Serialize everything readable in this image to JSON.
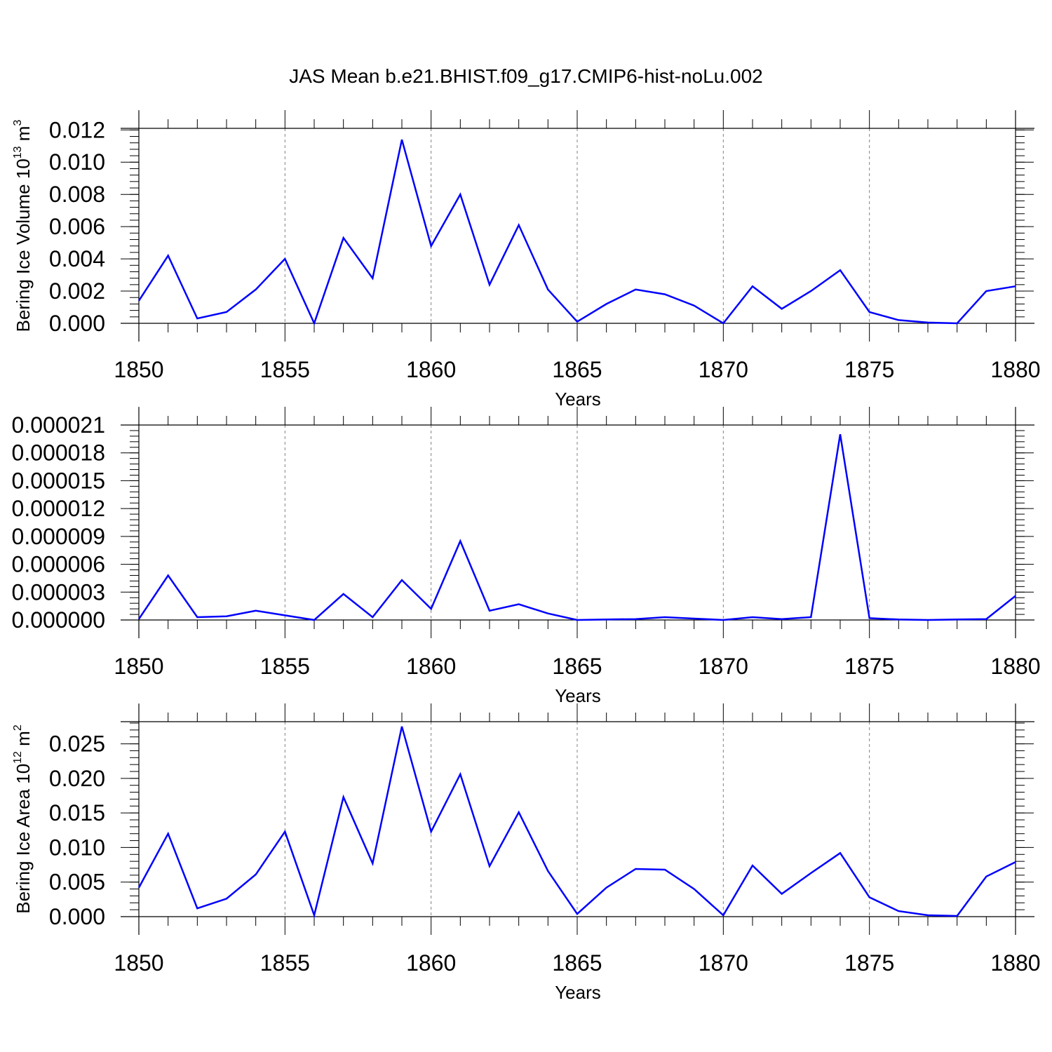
{
  "title": "JAS Mean b.e21.BHIST.f09_g17.CMIP6-hist-noLu.002",
  "colors": {
    "line": "#0000ff",
    "axis": "#000000",
    "grid": "#808080"
  },
  "chart_data": [
    {
      "type": "line",
      "ylabel_main": "Bering Ice Volume 10",
      "ylabel_exp": "13",
      "ylabel_unit": "m",
      "ylabel_unit_exp": "3",
      "xlabel": "Years",
      "xlim": [
        1850,
        1880
      ],
      "ylim": [
        0,
        0.0121
      ],
      "xticks": [
        1850,
        1855,
        1860,
        1865,
        1870,
        1875,
        1880
      ],
      "xtick_labels": [
        "1850",
        "1855",
        "1860",
        "1865",
        "1870",
        "1875",
        "1880"
      ],
      "yticks": [
        0,
        0.002,
        0.004,
        0.006,
        0.008,
        0.01,
        0.012
      ],
      "ytick_labels": [
        "0.000",
        "0.002",
        "0.004",
        "0.006",
        "0.008",
        "0.010",
        "0.012"
      ],
      "yminor_step": 0.0004,
      "x": [
        1850,
        1851,
        1852,
        1853,
        1854,
        1855,
        1856,
        1857,
        1858,
        1859,
        1860,
        1861,
        1862,
        1863,
        1864,
        1865,
        1866,
        1867,
        1868,
        1869,
        1870,
        1871,
        1872,
        1873,
        1874,
        1875,
        1876,
        1877,
        1878,
        1879,
        1880
      ],
      "values": [
        0.0014,
        0.0042,
        0.0003,
        0.0007,
        0.0021,
        0.004,
        0.0,
        0.0053,
        0.0028,
        0.0114,
        0.0048,
        0.008,
        0.0024,
        0.0061,
        0.0021,
        0.0001,
        0.0012,
        0.0021,
        0.0018,
        0.0011,
        0.0,
        0.0023,
        0.0009,
        0.002,
        0.0033,
        0.0007,
        0.0002,
        5e-05,
        0.0,
        0.002,
        0.0023
      ]
    },
    {
      "type": "line",
      "xlabel": "Years",
      "xlim": [
        1850,
        1880
      ],
      "ylim": [
        0,
        2.1e-05
      ],
      "xticks": [
        1850,
        1855,
        1860,
        1865,
        1870,
        1875,
        1880
      ],
      "xtick_labels": [
        "1850",
        "1855",
        "1860",
        "1865",
        "1870",
        "1875",
        "1880"
      ],
      "yticks": [
        0,
        3e-06,
        6e-06,
        9e-06,
        1.2e-05,
        1.5e-05,
        1.8e-05,
        2.1e-05
      ],
      "ytick_labels": [
        "0.000000",
        "0.000003",
        "0.000006",
        "0.000009",
        "0.000012",
        "0.000015",
        "0.000018",
        "0.000021"
      ],
      "yminor_step": 6e-07,
      "x": [
        1850,
        1851,
        1852,
        1853,
        1854,
        1855,
        1856,
        1857,
        1858,
        1859,
        1860,
        1861,
        1862,
        1863,
        1864,
        1865,
        1866,
        1867,
        1868,
        1869,
        1870,
        1871,
        1872,
        1873,
        1874,
        1875,
        1876,
        1877,
        1878,
        1879,
        1880
      ],
      "values": [
        1e-07,
        4.8e-06,
        3e-07,
        4e-07,
        1e-06,
        5e-07,
        0.0,
        2.8e-06,
        3e-07,
        4.3e-06,
        1.2e-06,
        8.5e-06,
        1e-06,
        1.7e-06,
        7e-07,
        0.0,
        5e-08,
        1e-07,
        3e-07,
        1.5e-07,
        0.0,
        3e-07,
        1e-07,
        3e-07,
        2e-05,
        2e-07,
        5e-08,
        0.0,
        5e-08,
        1e-07,
        2.6e-06
      ]
    },
    {
      "type": "line",
      "ylabel_main": "Bering Ice Area 10",
      "ylabel_exp": "12",
      "ylabel_unit": "m",
      "ylabel_unit_exp": "2",
      "xlabel": "Years",
      "xlim": [
        1850,
        1880
      ],
      "ylim": [
        0,
        0.028
      ],
      "xticks": [
        1850,
        1855,
        1860,
        1865,
        1870,
        1875,
        1880
      ],
      "xtick_labels": [
        "1850",
        "1855",
        "1860",
        "1865",
        "1870",
        "1875",
        "1880"
      ],
      "yticks": [
        0,
        0.005,
        0.01,
        0.015,
        0.02,
        0.025
      ],
      "ytick_labels": [
        "0.000",
        "0.005",
        "0.010",
        "0.015",
        "0.020",
        "0.025"
      ],
      "yminor_step": 0.001,
      "x": [
        1850,
        1851,
        1852,
        1853,
        1854,
        1855,
        1856,
        1857,
        1858,
        1859,
        1860,
        1861,
        1862,
        1863,
        1864,
        1865,
        1866,
        1867,
        1868,
        1869,
        1870,
        1871,
        1872,
        1873,
        1874,
        1875,
        1876,
        1877,
        1878,
        1879,
        1880
      ],
      "values": [
        0.0042,
        0.012,
        0.0012,
        0.0026,
        0.0061,
        0.0123,
        0.0002,
        0.0173,
        0.0077,
        0.0275,
        0.0123,
        0.0206,
        0.0073,
        0.0151,
        0.0066,
        0.0004,
        0.0042,
        0.0069,
        0.0068,
        0.004,
        0.0002,
        0.0074,
        0.0033,
        0.0063,
        0.0092,
        0.0028,
        0.0008,
        0.0002,
        0.0001,
        0.0058,
        0.0079
      ]
    }
  ]
}
